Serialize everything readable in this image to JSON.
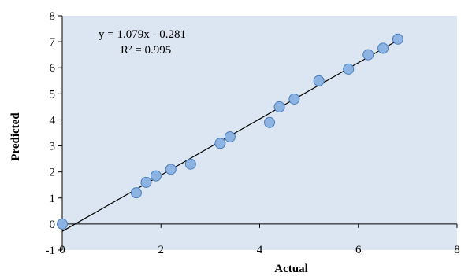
{
  "chart_data": {
    "type": "scatter",
    "xlabel": "Actual",
    "ylabel": "Predicted",
    "xlim": [
      0,
      8
    ],
    "ylim": [
      -1,
      8
    ],
    "x_ticks": [
      "0",
      "2",
      "4",
      "6",
      "8"
    ],
    "y_ticks": [
      "8",
      "7",
      "6",
      "5",
      "4",
      "3",
      "2",
      "1",
      "0",
      "-1"
    ],
    "grid": false,
    "plot_background": "#dce6f2",
    "marker_color": "#8db3e2",
    "marker_edge": "#4a7ebb",
    "trendline": {
      "slope": 1.079,
      "intercept": -0.281,
      "color": "#000000"
    },
    "annotations": {
      "equation": "y = 1.079x - 0.281",
      "r2": "R² = 0.995"
    },
    "points": [
      {
        "x": 0.0,
        "y": 0.0
      },
      {
        "x": 1.5,
        "y": 1.2
      },
      {
        "x": 1.7,
        "y": 1.6
      },
      {
        "x": 1.9,
        "y": 1.85
      },
      {
        "x": 2.2,
        "y": 2.1
      },
      {
        "x": 2.6,
        "y": 2.3
      },
      {
        "x": 3.2,
        "y": 3.1
      },
      {
        "x": 3.4,
        "y": 3.35
      },
      {
        "x": 4.2,
        "y": 3.9
      },
      {
        "x": 4.4,
        "y": 4.5
      },
      {
        "x": 4.7,
        "y": 4.8
      },
      {
        "x": 5.2,
        "y": 5.5
      },
      {
        "x": 5.8,
        "y": 5.95
      },
      {
        "x": 6.2,
        "y": 6.5
      },
      {
        "x": 6.5,
        "y": 6.75
      },
      {
        "x": 6.8,
        "y": 7.1
      }
    ]
  }
}
